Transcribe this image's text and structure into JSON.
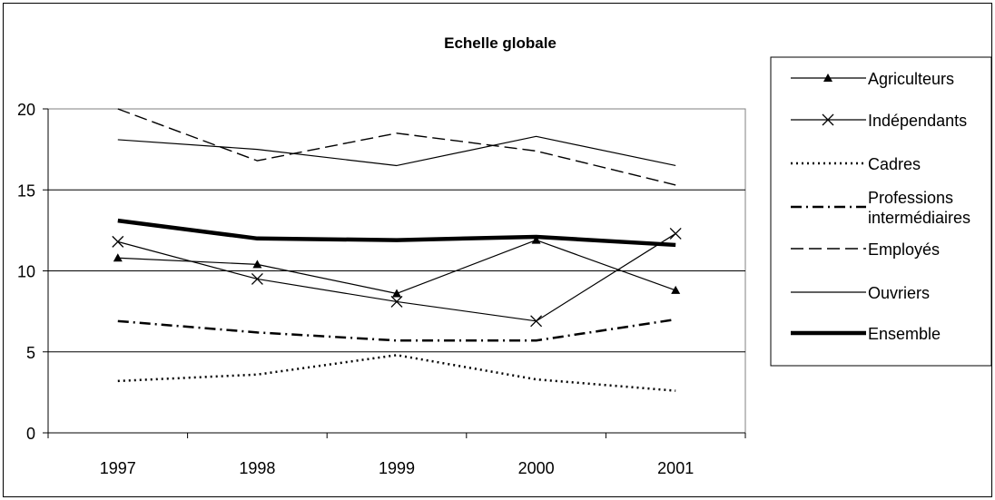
{
  "chart_data": {
    "type": "line",
    "title": "Echelle globale",
    "xlabel": "",
    "ylabel": "",
    "categories": [
      "1997",
      "1998",
      "1999",
      "2000",
      "2001"
    ],
    "ylim": [
      0,
      20
    ],
    "yticks": [
      "0",
      "5",
      "10",
      "15",
      "20"
    ],
    "grid": "horizontal",
    "legend_position": "right",
    "series": [
      {
        "name": "Agriculteurs",
        "values": [
          10.8,
          10.4,
          8.6,
          11.9,
          8.8
        ],
        "color": "#000000",
        "style": "solid",
        "marker": "triangle"
      },
      {
        "name": "Indépendants",
        "values": [
          11.8,
          9.5,
          8.1,
          6.9,
          12.3
        ],
        "color": "#000000",
        "style": "solid",
        "marker": "x"
      },
      {
        "name": "Cadres",
        "values": [
          3.2,
          3.6,
          4.8,
          3.3,
          2.6
        ],
        "color": "#000000",
        "style": "dotted",
        "marker": "none"
      },
      {
        "name": "Professions intermédiaires",
        "values": [
          6.9,
          6.2,
          5.7,
          5.7,
          7.0
        ],
        "color": "#000000",
        "style": "dashdot",
        "marker": "none"
      },
      {
        "name": "Employés",
        "values": [
          20.0,
          16.8,
          18.5,
          17.4,
          15.3
        ],
        "color": "#000000",
        "style": "dashed",
        "marker": "none"
      },
      {
        "name": "Ouvriers",
        "values": [
          18.1,
          17.5,
          16.5,
          18.3,
          16.5
        ],
        "color": "#000000",
        "style": "solid",
        "marker": "none"
      },
      {
        "name": "Ensemble",
        "values": [
          13.1,
          12.0,
          11.9,
          12.1,
          11.6
        ],
        "color": "#000000",
        "style": "bold",
        "marker": "none"
      }
    ]
  }
}
